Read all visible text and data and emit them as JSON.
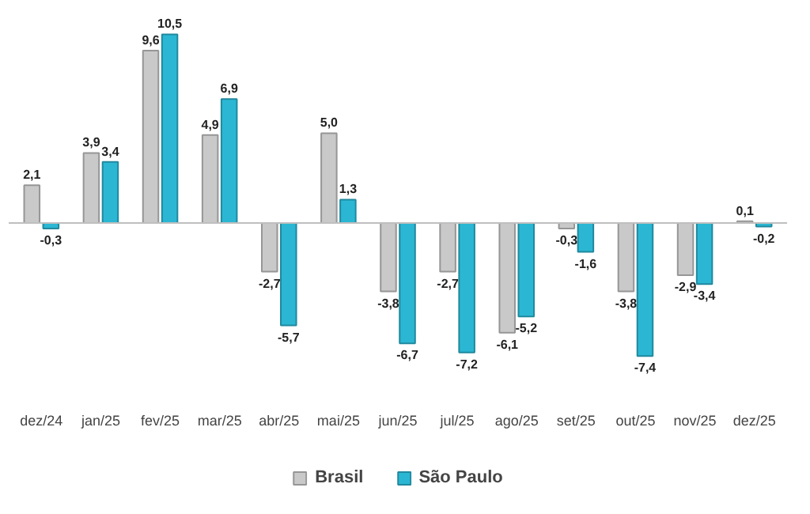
{
  "chart_data": {
    "type": "bar",
    "categories": [
      "dez/24",
      "jan/25",
      "fev/25",
      "mar/25",
      "abr/25",
      "mai/25",
      "jun/25",
      "jul/25",
      "ago/25",
      "set/25",
      "out/25",
      "nov/25",
      "dez/25"
    ],
    "series": [
      {
        "name": "Brasil",
        "color": "#c9c9c9",
        "values": [
          2.1,
          3.9,
          9.6,
          4.9,
          -2.7,
          5.0,
          -3.8,
          -2.7,
          -6.1,
          -0.3,
          -3.8,
          -2.9,
          0.1
        ],
        "value_labels": [
          "2,1",
          "3,9",
          "9,6",
          "4,9",
          "-2,7",
          "5,0",
          "-3,8",
          "-2,7",
          "-6,1",
          "-0,3",
          "-3,8",
          "-2,9",
          "0,1"
        ]
      },
      {
        "name": "São Paulo",
        "color": "#2bb7d3",
        "values": [
          -0.3,
          3.4,
          10.5,
          6.9,
          -5.7,
          1.3,
          -6.7,
          -7.2,
          -5.2,
          -1.6,
          -7.4,
          -3.4,
          -0.2
        ],
        "value_labels": [
          "-0,3",
          "3,4",
          "10,5",
          "6,9",
          "-5,7",
          "1,3",
          "-6,7",
          "-7,2",
          "-5,2",
          "-1,6",
          "-7,4",
          "-3,4",
          "-0,2"
        ]
      }
    ],
    "legend": "bottom"
  }
}
